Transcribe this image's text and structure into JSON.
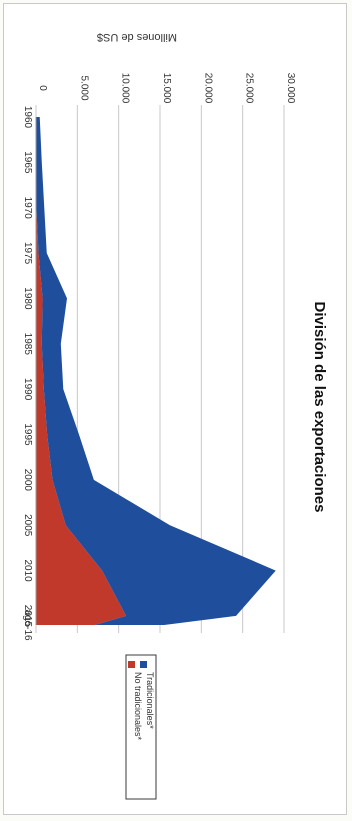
{
  "chart_data": {
    "type": "area",
    "stacked": true,
    "title": "División de las exportaciones",
    "ylabel": "Millones de US$",
    "xlabel": "",
    "ylim": [
      0,
      30000
    ],
    "y_ticks": [
      "0",
      "5.000",
      "10.000",
      "15.000",
      "20.000",
      "25.000",
      "30.000"
    ],
    "x_tick_labels": [
      "1960",
      "1965",
      "1970",
      "1975",
      "1980",
      "1985",
      "1990",
      "1995",
      "2000",
      "2005",
      "2010",
      "2015",
      "ago-16"
    ],
    "x": [
      1960,
      1965,
      1970,
      1975,
      1980,
      1985,
      1990,
      1995,
      2000,
      2005,
      2010,
      2015,
      2016
    ],
    "grid": true,
    "legend_position": "right",
    "series": [
      {
        "name": "No tradicionales*",
        "color": "#c0392b",
        "values": [
          0,
          0,
          50,
          300,
          800,
          700,
          950,
          1350,
          2000,
          3600,
          8000,
          10900,
          7100
        ]
      },
      {
        "name": "Tradicionales*",
        "color": "#1f4e9c",
        "values": [
          450,
          700,
          950,
          1000,
          2950,
          2300,
          2350,
          3850,
          5000,
          12600,
          21000,
          13300,
          8400
        ]
      }
    ]
  }
}
